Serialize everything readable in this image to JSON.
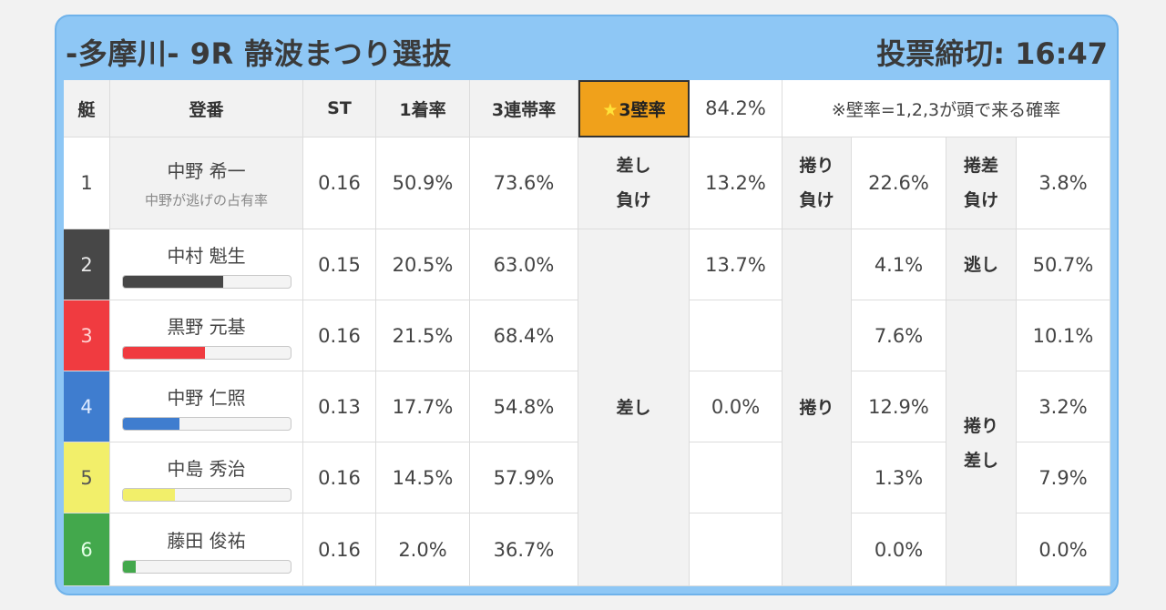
{
  "header": {
    "title": "-多摩川- 9R 静波まつり選抜",
    "deadline": "投票締切: 16:47"
  },
  "columns": {
    "boat": "艇",
    "name": "登番",
    "st": "ST",
    "first": "1着率",
    "trio": "3連帯率",
    "wall_label": "★3壁率",
    "wall_value": "84.2%",
    "note": "※壁率=1,2,3が頭で来る確率"
  },
  "rows": [
    {
      "boat": "1",
      "name": "中野 希一",
      "sub": "中野が逃げの占有率",
      "st": "0.16",
      "first": "50.9%",
      "trio": "73.6%"
    },
    {
      "boat": "2",
      "name": "中村 魁生",
      "st": "0.15",
      "first": "20.5%",
      "trio": "63.0%",
      "bar_fill": 0.6,
      "bar_color": "#474747"
    },
    {
      "boat": "3",
      "name": "黒野 元基",
      "st": "0.16",
      "first": "21.5%",
      "trio": "68.4%",
      "bar_fill": 0.49,
      "bar_color": "#f03b40"
    },
    {
      "boat": "4",
      "name": "中野 仁照",
      "st": "0.13",
      "first": "17.7%",
      "trio": "54.8%",
      "bar_fill": 0.34,
      "bar_color": "#3f7dcf"
    },
    {
      "boat": "5",
      "name": "中島 秀治",
      "st": "0.16",
      "first": "14.5%",
      "trio": "57.9%",
      "bar_fill": 0.31,
      "bar_color": "#f2ef6a"
    },
    {
      "boat": "6",
      "name": "藤田 俊祐",
      "st": "0.16",
      "first": "2.0%",
      "trio": "36.7%",
      "bar_fill": 0.08,
      "bar_color": "#43a84c"
    }
  ],
  "kimarite": {
    "sashi_make": "差し\n負け",
    "sashi_make_value": "13.2%",
    "makuri_make": "捲り\n負け",
    "makuri_make_value": "22.6%",
    "makurizashi_make": "捲差\n負け",
    "makurizashi_make_value": "3.8%",
    "nige": "逃し",
    "nige_value": "50.7%",
    "sashi": "差し",
    "sashi_values": [
      "13.7%",
      "",
      "0.0%",
      "",
      ""
    ],
    "makuri": "捲り",
    "makuri_values": [
      "4.1%",
      "7.6%",
      "12.9%",
      "1.3%",
      "0.0%"
    ],
    "makurizashi": "捲り\n差し",
    "makurizashi_values": [
      "10.1%",
      "3.2%",
      "7.9%",
      "0.0%"
    ]
  }
}
